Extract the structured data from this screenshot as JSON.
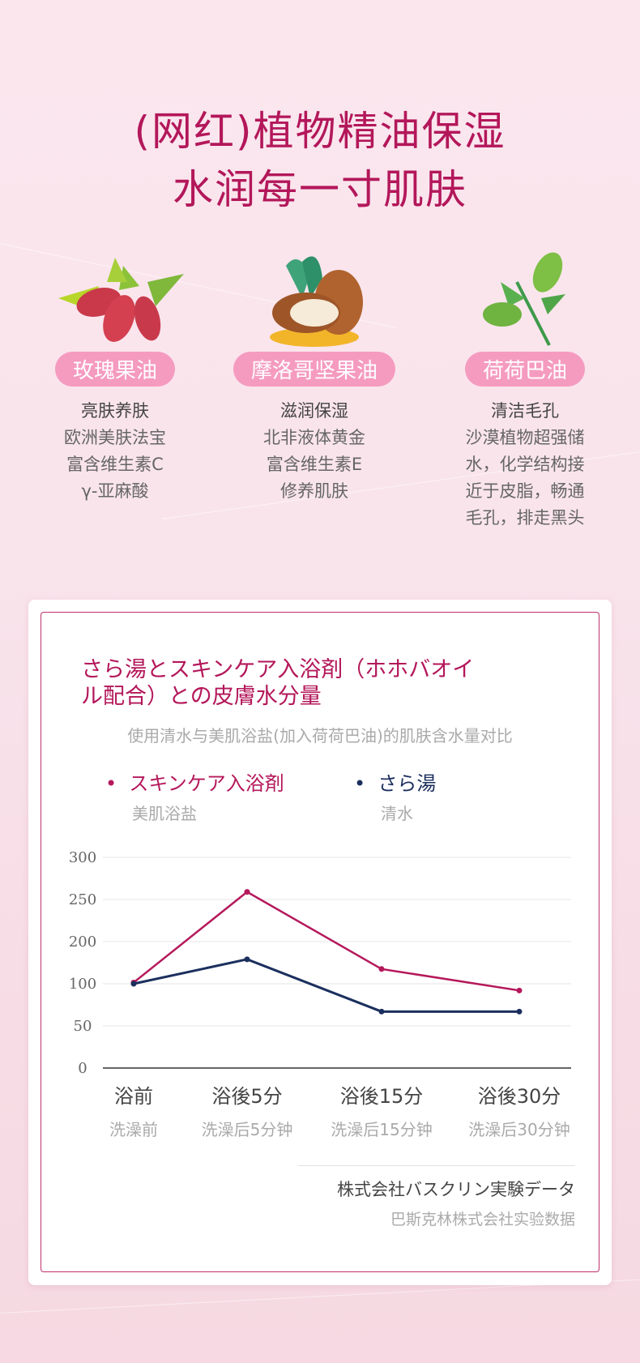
{
  "header": {
    "title_line1": "(网红)植物精油保湿",
    "title_line2": "水润每一寸肌肤"
  },
  "ingredients": [
    {
      "icon": "rosehip-icon",
      "name": "玫瑰果油",
      "lines": [
        "亮肤养肤",
        "欧洲美肤法宝",
        "富含维生素C",
        "γ-亚麻酸"
      ]
    },
    {
      "icon": "argan-nut-icon",
      "name": "摩洛哥坚果油",
      "lines": [
        "滋润保湿",
        "北非液体黄金",
        "富含维生素E",
        "修养肌肤"
      ]
    },
    {
      "icon": "jojoba-icon",
      "name": "荷荷巴油",
      "lines": [
        "清洁毛孔",
        "沙漠植物超强储",
        "水，化学结构接",
        "近于皮脂，畅通",
        "毛孔，排走黑头"
      ]
    }
  ],
  "chart_data": {
    "type": "line",
    "title": "さら湯とスキンケア入浴剤（ホホバオイル配合）との皮膚水分量",
    "title_line1": "さら湯とスキンケア入浴剤（ホホバオイ",
    "title_line2": "ル配合）との皮膚水分量",
    "subtitle": "使用清水与美肌浴盐(加入荷荷巴油)的肌肤含水量对比",
    "categories": [
      "浴前",
      "浴後5分",
      "浴後15分",
      "浴後30分"
    ],
    "categories_sub": [
      "洗澡前",
      "洗澡后5分钟",
      "洗澡后15分钟",
      "洗澡后30分钟"
    ],
    "yticks": [
      "300",
      "250",
      "200",
      "100",
      "50",
      "0"
    ],
    "ytick_values": [
      300,
      250,
      200,
      100,
      50,
      0
    ],
    "ylim": [
      0,
      300
    ],
    "grid": true,
    "legend_position": "top-left",
    "series": [
      {
        "name": "スキンケア入浴剤",
        "name_sub": "美肌浴盐",
        "color": "#b5185b",
        "values": [
          103,
          259,
          135,
          92
        ]
      },
      {
        "name": "さら湯",
        "name_sub": "清水",
        "color": "#1b2f5e",
        "values": [
          100,
          158,
          67,
          67
        ]
      }
    ],
    "source": "株式会社バスクリン実験データ",
    "source_sub": "巴斯克林株式会社实验数据"
  }
}
